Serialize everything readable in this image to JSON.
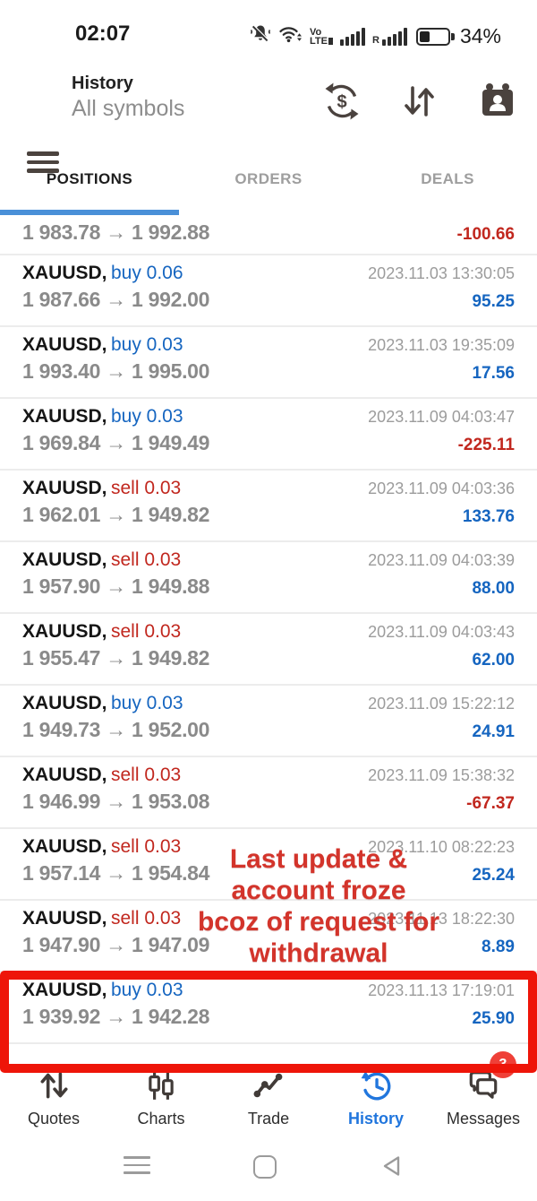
{
  "status_bar": {
    "time": "02:07",
    "volte_top": "Vo",
    "volte_bottom": "LTE",
    "roaming": "R",
    "battery_percent": "34%"
  },
  "header": {
    "title": "History",
    "subtitle": "All symbols"
  },
  "tabs": {
    "items": [
      "POSITIONS",
      "ORDERS",
      "DEALS"
    ],
    "active_index": 0
  },
  "ui": {
    "arrow": "→"
  },
  "positions": [
    {
      "partial": true,
      "open": "1 983.78",
      "close": "1 992.88",
      "profit": "-100.66",
      "profit_negative": true
    },
    {
      "symbol": "XAUUSD,",
      "side": "buy",
      "volume": "0.06",
      "open": "1 987.66",
      "close": "1 992.00",
      "time": "2023.11.03 13:30:05",
      "profit": "95.25",
      "profit_negative": false
    },
    {
      "symbol": "XAUUSD,",
      "side": "buy",
      "volume": "0.03",
      "open": "1 993.40",
      "close": "1 995.00",
      "time": "2023.11.03 19:35:09",
      "profit": "17.56",
      "profit_negative": false
    },
    {
      "symbol": "XAUUSD,",
      "side": "buy",
      "volume": "0.03",
      "open": "1 969.84",
      "close": "1 949.49",
      "time": "2023.11.09 04:03:47",
      "profit": "-225.11",
      "profit_negative": true
    },
    {
      "symbol": "XAUUSD,",
      "side": "sell",
      "volume": "0.03",
      "open": "1 962.01",
      "close": "1 949.82",
      "time": "2023.11.09 04:03:36",
      "profit": "133.76",
      "profit_negative": false
    },
    {
      "symbol": "XAUUSD,",
      "side": "sell",
      "volume": "0.03",
      "open": "1 957.90",
      "close": "1 949.88",
      "time": "2023.11.09 04:03:39",
      "profit": "88.00",
      "profit_negative": false
    },
    {
      "symbol": "XAUUSD,",
      "side": "sell",
      "volume": "0.03",
      "open": "1 955.47",
      "close": "1 949.82",
      "time": "2023.11.09 04:03:43",
      "profit": "62.00",
      "profit_negative": false
    },
    {
      "symbol": "XAUUSD,",
      "side": "buy",
      "volume": "0.03",
      "open": "1 949.73",
      "close": "1 952.00",
      "time": "2023.11.09 15:22:12",
      "profit": "24.91",
      "profit_negative": false
    },
    {
      "symbol": "XAUUSD,",
      "side": "sell",
      "volume": "0.03",
      "open": "1 946.99",
      "close": "1 953.08",
      "time": "2023.11.09 15:38:32",
      "profit": "-67.37",
      "profit_negative": true
    },
    {
      "symbol": "XAUUSD,",
      "side": "sell",
      "volume": "0.03",
      "open": "1 957.14",
      "close": "1 954.84",
      "time": "2023.11.10 08:22:23",
      "profit": "25.24",
      "profit_negative": false
    },
    {
      "symbol": "XAUUSD,",
      "side": "sell",
      "volume": "0.03",
      "open": "1 947.90",
      "close": "1 947.09",
      "time": "2023.11.13 18:22:30",
      "profit": "8.89",
      "profit_negative": false
    },
    {
      "symbol": "XAUUSD,",
      "side": "buy",
      "volume": "0.03",
      "open": "1 939.92",
      "close": "1 942.28",
      "time": "2023.11.13 17:19:01",
      "profit": "25.90",
      "profit_negative": false,
      "highlighted": true
    }
  ],
  "annotation": {
    "lines": [
      "Last update &",
      "account froze",
      "bcoz of request for",
      "withdrawal"
    ]
  },
  "bottom_nav": {
    "items": [
      {
        "label": "Quotes"
      },
      {
        "label": "Charts"
      },
      {
        "label": "Trade"
      },
      {
        "label": "History",
        "active": true
      },
      {
        "label": "Messages",
        "badge": "3"
      }
    ]
  },
  "colors": {
    "buy_blue": "#1565c0",
    "sell_red": "#c1271e",
    "annotation_red": "#d3342b",
    "highlight_red": "#ee1509",
    "tab_indicator_blue": "#4a90d8",
    "nav_active_blue": "#2176dd"
  }
}
